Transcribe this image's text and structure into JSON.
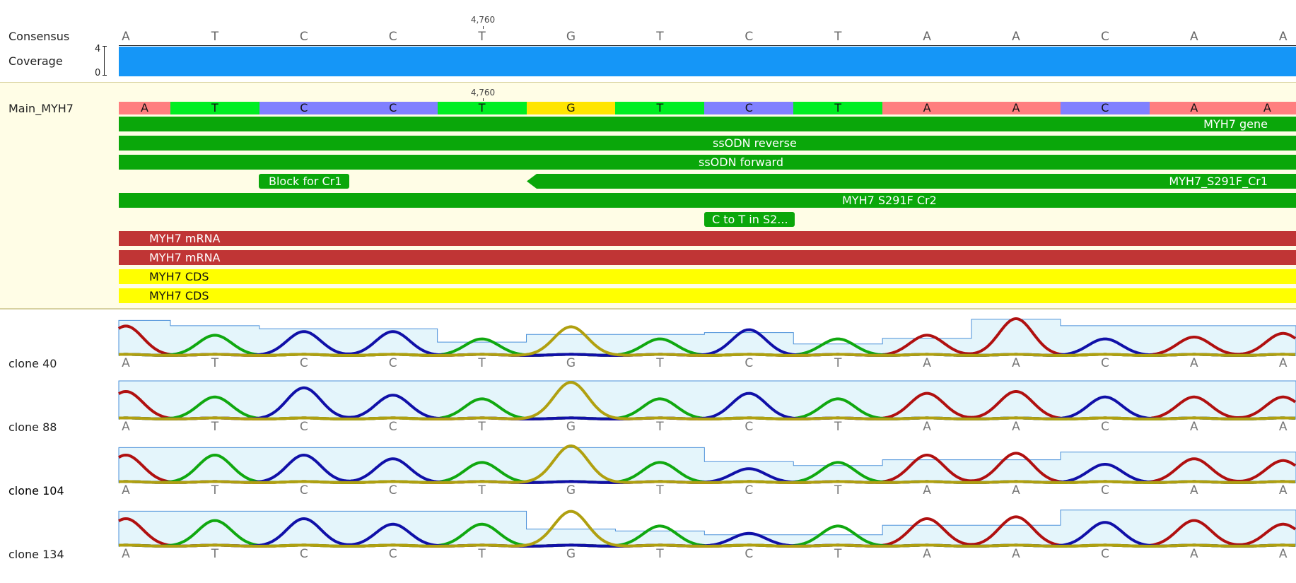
{
  "consensus": {
    "label": "Consensus",
    "ruler_label": "4,760",
    "bases": [
      "A",
      "T",
      "C",
      "C",
      "T",
      "G",
      "T",
      "C",
      "T",
      "A",
      "A",
      "C",
      "A",
      "A"
    ]
  },
  "coverage": {
    "label": "Coverage",
    "max": "4",
    "min": "0",
    "color": "#1596f7"
  },
  "main": {
    "label": "Main_MYH7",
    "ruler_label": "4,760",
    "bases": [
      "A",
      "T",
      "C",
      "C",
      "T",
      "G",
      "T",
      "C",
      "T",
      "A",
      "A",
      "C",
      "A",
      "A"
    ],
    "base_colors": {
      "A": "#ff7f7f",
      "T": "#00ee22",
      "C": "#8080ff",
      "G": "#ffe500"
    },
    "annotations": [
      {
        "text": "MYH7 gene",
        "kind": "green"
      },
      {
        "text": "ssODN reverse",
        "kind": "green"
      },
      {
        "text": "ssODN forward",
        "kind": "green"
      },
      {
        "text": "Block for Cr1",
        "kind": "green"
      },
      {
        "text": "MYH7_S291F_Cr1",
        "kind": "green"
      },
      {
        "text": "MYH7 S291F Cr2",
        "kind": "green"
      },
      {
        "text": "C to T in S2...",
        "kind": "green"
      },
      {
        "text": "MYH7 mRNA",
        "kind": "red"
      },
      {
        "text": "MYH7 mRNA",
        "kind": "red"
      },
      {
        "text": "MYH7 CDS",
        "kind": "yellow"
      },
      {
        "text": "MYH7 CDS",
        "kind": "yellow"
      }
    ]
  },
  "traces": [
    {
      "label": "clone 40",
      "bases": [
        "A",
        "T",
        "C",
        "C",
        "T",
        "G",
        "T",
        "C",
        "T",
        "A",
        "A",
        "C",
        "A",
        "A"
      ]
    },
    {
      "label": "clone 88",
      "bases": [
        "A",
        "T",
        "C",
        "C",
        "T",
        "G",
        "T",
        "C",
        "T",
        "A",
        "A",
        "C",
        "A",
        "A"
      ]
    },
    {
      "label": "clone 104",
      "bases": [
        "A",
        "T",
        "C",
        "C",
        "T",
        "G",
        "T",
        "C",
        "T",
        "A",
        "A",
        "C",
        "A",
        "A"
      ]
    },
    {
      "label": "clone 134",
      "bases": [
        "A",
        "T",
        "C",
        "C",
        "T",
        "G",
        "T",
        "C",
        "T",
        "A",
        "A",
        "C",
        "A",
        "A"
      ]
    }
  ],
  "trace_colors": {
    "A": "#b01010",
    "T": "#10a810",
    "C": "#1010a8",
    "G": "#b0a010",
    "quality_fill": "#e4f5fb",
    "quality_line": "#4a90d9"
  }
}
